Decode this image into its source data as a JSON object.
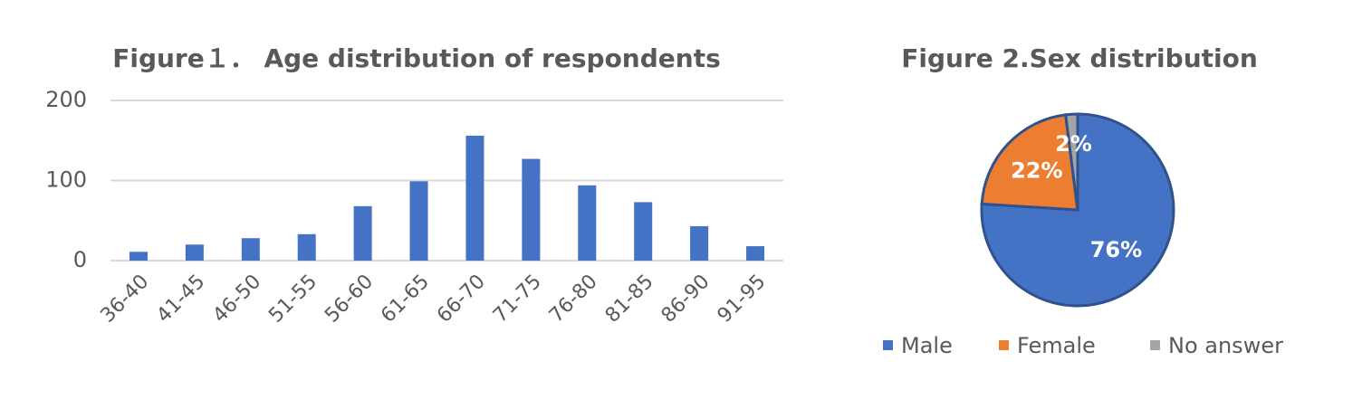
{
  "chart_data": [
    {
      "type": "bar",
      "title": "Figure１． Age distribution of respondents",
      "categories": [
        "36-40",
        "41-45",
        "46-50",
        "51-55",
        "56-60",
        "61-65",
        "66-70",
        "71-75",
        "76-80",
        "81-85",
        "86-90",
        "91-95"
      ],
      "values": [
        11,
        20,
        28,
        33,
        68,
        99,
        156,
        127,
        94,
        73,
        43,
        18
      ],
      "color": "#4472c4",
      "ylim": [
        0,
        200
      ],
      "yticks": [
        0,
        100,
        200
      ],
      "grid": true
    },
    {
      "type": "pie",
      "title": "Figure 2.Sex distribution",
      "categories": [
        "Male",
        "Female",
        "No answer"
      ],
      "values": [
        76,
        22,
        2
      ],
      "value_labels": [
        "76%",
        "22%",
        "2%"
      ],
      "colors": [
        "#4472c4",
        "#ed7d31",
        "#a5a5a5"
      ],
      "legend": "bottom"
    }
  ]
}
